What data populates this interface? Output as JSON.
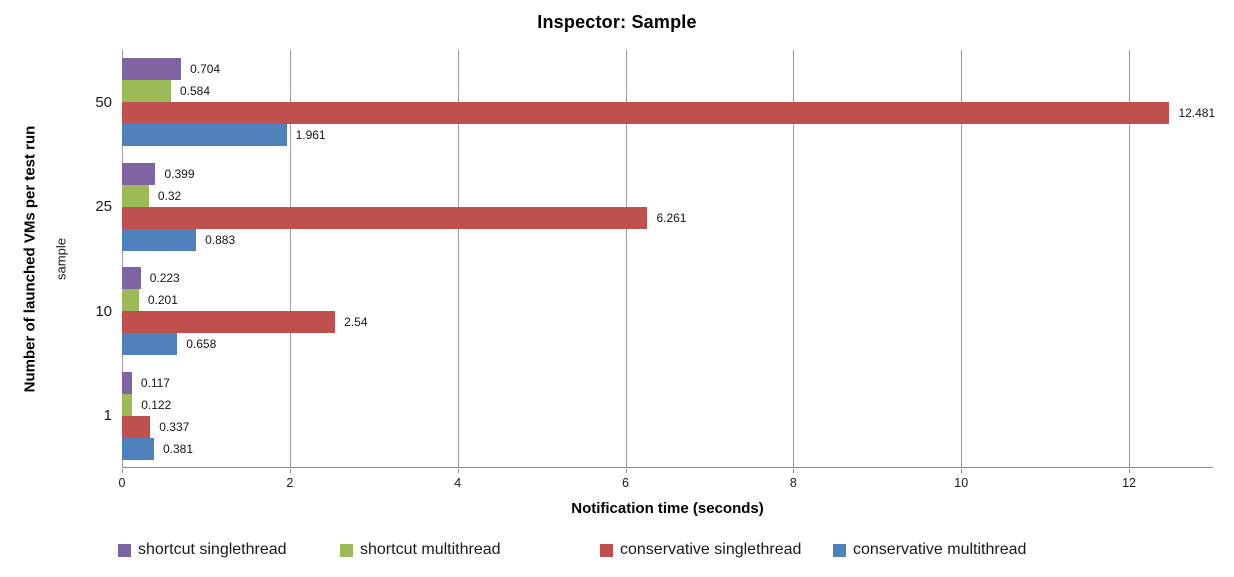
{
  "chart_data": {
    "type": "bar",
    "orientation": "horizontal",
    "title": "Inspector: Sample",
    "xlabel": "Notification time (seconds)",
    "ylabel": "Number of launched VMs per test run",
    "ylabel_inner": "sample",
    "categories": [
      "50",
      "25",
      "10",
      "1"
    ],
    "series": [
      {
        "name": "shortcut singlethread",
        "color": "#8064A2",
        "values": [
          0.704,
          0.399,
          0.223,
          0.117
        ],
        "labels": [
          "0.704",
          "0.399",
          "0.223",
          "0.117"
        ]
      },
      {
        "name": "shortcut multithread",
        "color": "#9BBB59",
        "values": [
          0.584,
          0.32,
          0.201,
          0.122
        ],
        "labels": [
          "0.584",
          "0.32",
          "0.201",
          "0.122"
        ]
      },
      {
        "name": "conservative singlethread",
        "color": "#C0504D",
        "values": [
          12.481,
          6.261,
          2.54,
          0.337
        ],
        "labels": [
          "12.481",
          "6.261",
          "2.54",
          "0.337"
        ]
      },
      {
        "name": "conservative multithread",
        "color": "#4F81BD",
        "values": [
          1.961,
          0.883,
          0.658,
          0.381
        ],
        "labels": [
          "1.961",
          "0.883",
          "0.658",
          "0.381"
        ]
      }
    ],
    "xticks": [
      "0",
      "2",
      "4",
      "6",
      "8",
      "10",
      "12"
    ],
    "xlim": [
      0,
      13
    ],
    "grid": true,
    "grid_color": "#9d9d9d",
    "axis_color": "#8a8a8a",
    "legend_position": "bottom"
  }
}
